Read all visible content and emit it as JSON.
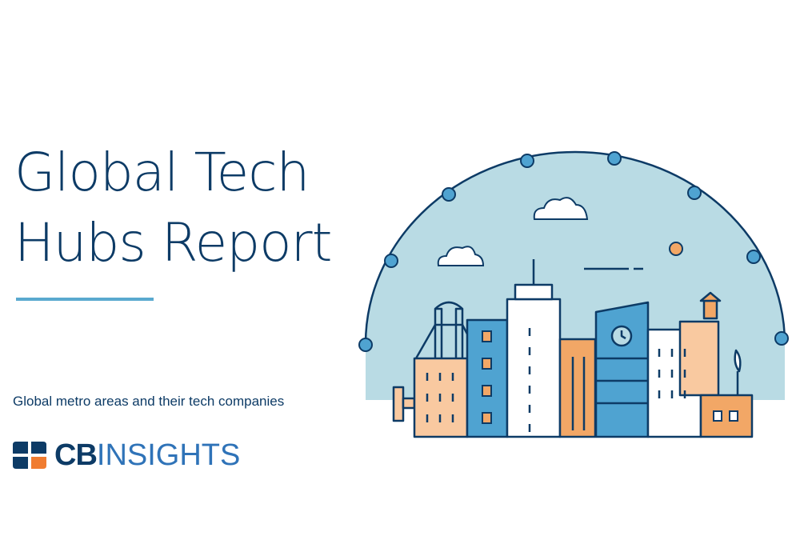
{
  "title": {
    "line1": "Global Tech",
    "line2": "Hubs Report"
  },
  "subtitle": "Global metro areas and their tech companies",
  "logo": {
    "part1": "CB",
    "part2": "INSIGHTS"
  },
  "colors": {
    "navy": "#0d3b66",
    "accent_blue": "#5aa9cf",
    "sky": "#b9dbe4",
    "orange": "#f2a766",
    "peach": "#f9c9a0",
    "building_blue": "#4fa3d1"
  },
  "illustration": {
    "icon": "city-skyline-illustration"
  }
}
